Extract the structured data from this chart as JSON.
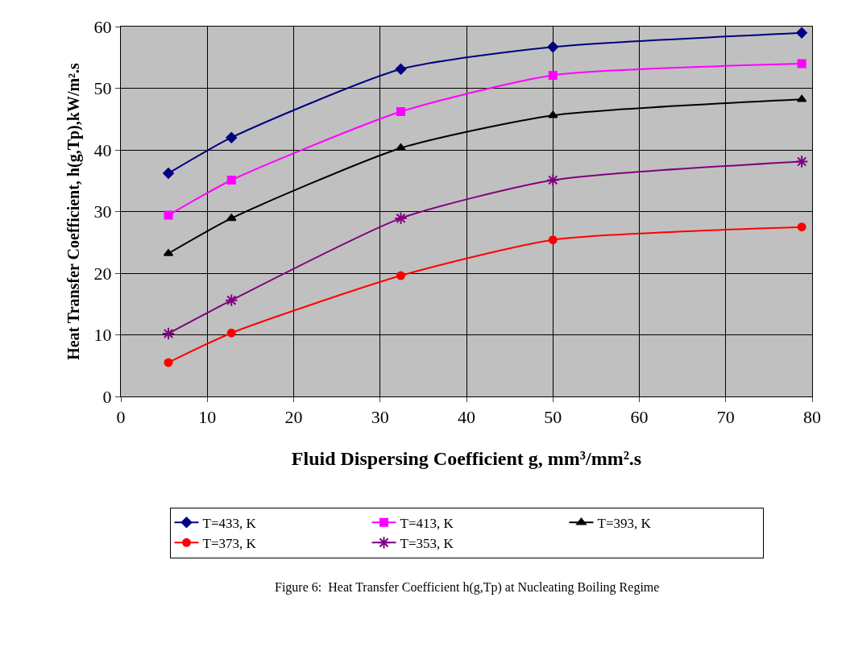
{
  "chart_data": {
    "type": "line",
    "xlabel": "Fluid Dispersing Coefficient g, mm³/mm².s",
    "ylabel": "Heat Transfer Coefficient, h(g,Tp),kW/m².s",
    "x": [
      5.5,
      12.8,
      32.4,
      50.0,
      78.8
    ],
    "series": [
      {
        "name": "T=433, K",
        "color": "#000080",
        "marker": "diamond",
        "values": [
          36.2,
          42.0,
          53.1,
          56.7,
          59.0
        ]
      },
      {
        "name": "T=413, K",
        "color": "#ff00ff",
        "marker": "square",
        "values": [
          29.4,
          35.1,
          46.2,
          52.1,
          54.0
        ]
      },
      {
        "name": "T=393, K",
        "color": "#000000",
        "marker": "triangle",
        "values": [
          23.2,
          28.9,
          40.3,
          45.6,
          48.2
        ]
      },
      {
        "name": "T=373, K",
        "color": "#ff0000",
        "marker": "circle",
        "values": [
          5.5,
          10.3,
          19.6,
          25.4,
          27.5
        ]
      },
      {
        "name": "T=353, K",
        "color": "#800080",
        "marker": "cross",
        "values": [
          10.2,
          15.6,
          28.9,
          35.1,
          38.1
        ]
      }
    ],
    "xlim": [
      0,
      80
    ],
    "xticks": [
      0,
      10,
      20,
      30,
      40,
      50,
      60,
      70,
      80
    ],
    "ylim": [
      0,
      60
    ],
    "yticks": [
      0,
      10,
      20,
      30,
      40,
      50,
      60
    ],
    "grid": true,
    "legend": "bottom",
    "line_style": "solid",
    "annotations": [
      "Figure 6:  Heat Transfer Coefficient h(g,Tp) at Nucleating Boiling Regime"
    ]
  }
}
